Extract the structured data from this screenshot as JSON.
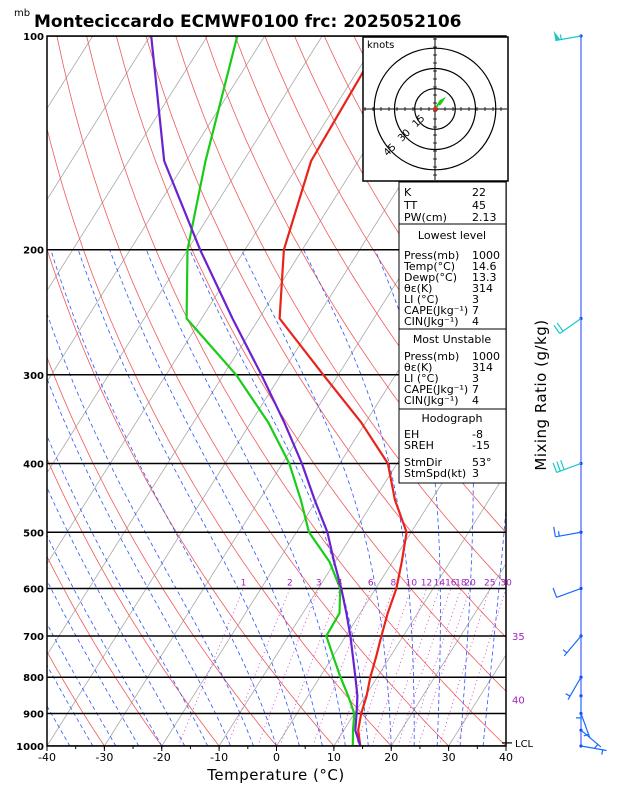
{
  "header": {
    "unit_label": "mb",
    "title": "Monteciccardo ECMWF0100 frc: 2025052106"
  },
  "chart_data": {
    "type": "line",
    "title": "Monteciccardo ECMWF0100 frc: 2025052106",
    "xlabel": "Temperature (°C)",
    "ylabel": "mb",
    "right_label": "Mixing Ratio (g/kg)",
    "xlim": [
      -40,
      40
    ],
    "ylim": [
      1000,
      100
    ],
    "y_scale": "log",
    "x_ticks": [
      "-40",
      "-30",
      "-20",
      "-10",
      "0",
      "10",
      "20",
      "30",
      "40"
    ],
    "y_ticks": [
      {
        "p": 100,
        "label": "100"
      },
      {
        "p": 200,
        "label": "200"
      },
      {
        "p": 300,
        "label": "300"
      },
      {
        "p": 400,
        "label": "400"
      },
      {
        "p": 500,
        "label": "500"
      },
      {
        "p": 600,
        "label": "600"
      },
      {
        "p": 700,
        "label": "700"
      },
      {
        "p": 800,
        "label": "800"
      },
      {
        "p": 900,
        "label": "900"
      },
      {
        "p": 1000,
        "label": "1000"
      }
    ],
    "mixing_ratio_labels": [
      "1",
      "2",
      "3",
      "4",
      "6",
      "8",
      "10",
      "12",
      "14",
      "16",
      "18",
      "20",
      "25",
      "30"
    ],
    "theta_e_labels": [
      {
        "p": 700,
        "label": "35"
      },
      {
        "p": 860,
        "label": "40"
      }
    ],
    "lcl_label": "LCL",
    "lcl_pressure": 990,
    "series": [
      {
        "name": "temperature",
        "color": "#e8241a",
        "points": [
          [
            1000,
            14.6
          ],
          [
            950,
            12.5
          ],
          [
            900,
            11.2
          ],
          [
            850,
            10.2
          ],
          [
            800,
            8.8
          ],
          [
            750,
            7.6
          ],
          [
            700,
            6.2
          ],
          [
            650,
            4.8
          ],
          [
            600,
            3.6
          ],
          [
            550,
            1.6
          ],
          [
            500,
            -0.8
          ],
          [
            450,
            -6.4
          ],
          [
            400,
            -11.6
          ],
          [
            350,
            -20.8
          ],
          [
            300,
            -32.6
          ],
          [
            250,
            -46.4
          ],
          [
            200,
            -53.2
          ],
          [
            150,
            -58.2
          ],
          [
            100,
            -59.2
          ]
        ]
      },
      {
        "name": "dewpoint",
        "color": "#18cc18",
        "points": [
          [
            1000,
            13.3
          ],
          [
            950,
            11.6
          ],
          [
            900,
            10.0
          ],
          [
            850,
            7.0
          ],
          [
            800,
            3.6
          ],
          [
            750,
            0.2
          ],
          [
            700,
            -3.4
          ],
          [
            650,
            -3.6
          ],
          [
            600,
            -6.2
          ],
          [
            550,
            -11.0
          ],
          [
            500,
            -17.8
          ],
          [
            450,
            -22.8
          ],
          [
            400,
            -28.8
          ],
          [
            350,
            -37.0
          ],
          [
            300,
            -47.8
          ],
          [
            250,
            -62.6
          ],
          [
            200,
            -70.0
          ],
          [
            150,
            -76.6
          ],
          [
            100,
            -84.8
          ]
        ]
      },
      {
        "name": "parcel",
        "color": "#6a22d0",
        "points": [
          [
            1000,
            14.6
          ],
          [
            950,
            12.0
          ],
          [
            900,
            10.4
          ],
          [
            850,
            8.6
          ],
          [
            800,
            6.2
          ],
          [
            750,
            3.6
          ],
          [
            700,
            0.8
          ],
          [
            650,
            -2.4
          ],
          [
            600,
            -6.0
          ],
          [
            550,
            -10.2
          ],
          [
            500,
            -14.6
          ],
          [
            450,
            -20.4
          ],
          [
            400,
            -26.6
          ],
          [
            350,
            -34.2
          ],
          [
            300,
            -43.4
          ],
          [
            250,
            -54.6
          ],
          [
            200,
            -67.8
          ],
          [
            150,
            -83.8
          ],
          [
            100,
            -99.8
          ]
        ]
      }
    ],
    "hodograph": {
      "unit_label": "knots",
      "rings": [
        15,
        30,
        45
      ],
      "ring_labels": [
        "15",
        "30",
        "45"
      ],
      "points": [
        [
          0,
          0
        ],
        [
          2,
          3
        ],
        [
          4,
          6
        ],
        [
          6,
          7
        ],
        [
          4,
          4
        ],
        [
          3,
          3
        ]
      ]
    },
    "wind_barbs": [
      {
        "p": 100,
        "dir": 260,
        "spd": 55
      },
      {
        "p": 250,
        "dir": 235,
        "spd": 20
      },
      {
        "p": 400,
        "dir": 250,
        "spd": 30
      },
      {
        "p": 500,
        "dir": 260,
        "spd": 15
      },
      {
        "p": 600,
        "dir": 250,
        "spd": 10
      },
      {
        "p": 700,
        "dir": 220,
        "spd": 5
      },
      {
        "p": 800,
        "dir": 210,
        "spd": 5
      },
      {
        "p": 850,
        "dir": 180,
        "spd": 5
      },
      {
        "p": 900,
        "dir": 160,
        "spd": 5
      },
      {
        "p": 950,
        "dir": 130,
        "spd": 5
      },
      {
        "p": 1000,
        "dir": 100,
        "spd": 5
      }
    ]
  },
  "indices_table": {
    "top": [
      {
        "label": "K",
        "value": "22"
      },
      {
        "label": "TT",
        "value": "45"
      },
      {
        "label": "PW(cm)",
        "value": "2.13"
      }
    ],
    "lowest_level": {
      "heading": "Lowest level",
      "rows": [
        {
          "label": "Press(mb)",
          "value": "1000"
        },
        {
          "label": "Temp(°C)",
          "value": "14.6"
        },
        {
          "label": "Dewp(°C)",
          "value": "13.3"
        },
        {
          "label": "θε(K)",
          "value": "314"
        },
        {
          "label": "LI (°C)",
          "value": "3"
        },
        {
          "label": "CAPE(Jkg⁻¹)",
          "value": "7"
        },
        {
          "label": "CIN(Jkg⁻¹)",
          "value": "4"
        }
      ]
    },
    "most_unstable": {
      "heading": "Most Unstable",
      "rows": [
        {
          "label": "Press(mb)",
          "value": "1000"
        },
        {
          "label": "θε(K)",
          "value": "314"
        },
        {
          "label": "LI (°C)",
          "value": "3"
        },
        {
          "label": "CAPE(Jkg⁻¹)",
          "value": "7"
        },
        {
          "label": "CIN(Jkg⁻¹)",
          "value": "4"
        }
      ]
    },
    "hodograph": {
      "heading": "Hodograph",
      "rows": [
        {
          "label": "EH",
          "value": "-8"
        },
        {
          "label": "SREH",
          "value": "-15"
        },
        {
          "label": "StmDir",
          "value": "53°"
        },
        {
          "label": "StmSpd(kt)",
          "value": "3"
        }
      ]
    }
  }
}
